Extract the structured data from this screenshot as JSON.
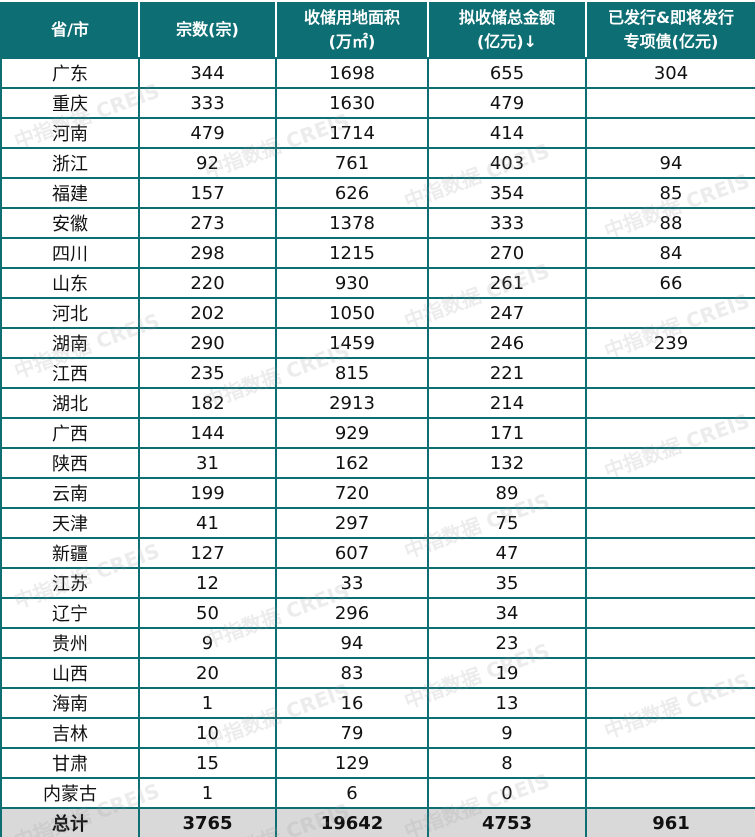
{
  "headers": [
    "省/市",
    "宗数(宗)",
    "收储用地面积\n(万㎡)",
    "拟收储总金额\n(亿元)↓",
    "已发行&即将发行\n专项债(亿元)"
  ],
  "rows": [
    [
      "广东",
      "344",
      "1698",
      "655",
      "304"
    ],
    [
      "重庆",
      "333",
      "1630",
      "479",
      ""
    ],
    [
      "河南",
      "479",
      "1714",
      "414",
      ""
    ],
    [
      "浙江",
      "92",
      "761",
      "403",
      "94"
    ],
    [
      "福建",
      "157",
      "626",
      "354",
      "85"
    ],
    [
      "安徽",
      "273",
      "1378",
      "333",
      "88"
    ],
    [
      "四川",
      "298",
      "1215",
      "270",
      "84"
    ],
    [
      "山东",
      "220",
      "930",
      "261",
      "66"
    ],
    [
      "河北",
      "202",
      "1050",
      "247",
      ""
    ],
    [
      "湖南",
      "290",
      "1459",
      "246",
      "239"
    ],
    [
      "江西",
      "235",
      "815",
      "221",
      ""
    ],
    [
      "湖北",
      "182",
      "2913",
      "214",
      ""
    ],
    [
      "广西",
      "144",
      "929",
      "171",
      ""
    ],
    [
      "陕西",
      "31",
      "162",
      "132",
      ""
    ],
    [
      "云南",
      "199",
      "720",
      "89",
      ""
    ],
    [
      "天津",
      "41",
      "297",
      "75",
      ""
    ],
    [
      "新疆",
      "127",
      "607",
      "47",
      ""
    ],
    [
      "江苏",
      "12",
      "33",
      "35",
      ""
    ],
    [
      "辽宁",
      "50",
      "296",
      "34",
      ""
    ],
    [
      "贵州",
      "9",
      "94",
      "23",
      ""
    ],
    [
      "山西",
      "20",
      "83",
      "19",
      ""
    ],
    [
      "海南",
      "1",
      "16",
      "13",
      ""
    ],
    [
      "吉林",
      "10",
      "79",
      "9",
      ""
    ],
    [
      "甘肃",
      "15",
      "129",
      "8",
      ""
    ],
    [
      "内蒙古",
      "1",
      "6",
      "0",
      ""
    ]
  ],
  "total": [
    "总计",
    "3765",
    "19642",
    "4753",
    "961"
  ],
  "watermark": "中指数据 CREIS",
  "colors": {
    "header_bg": "#0d6e73",
    "total_bg": "#d9d9d9"
  }
}
